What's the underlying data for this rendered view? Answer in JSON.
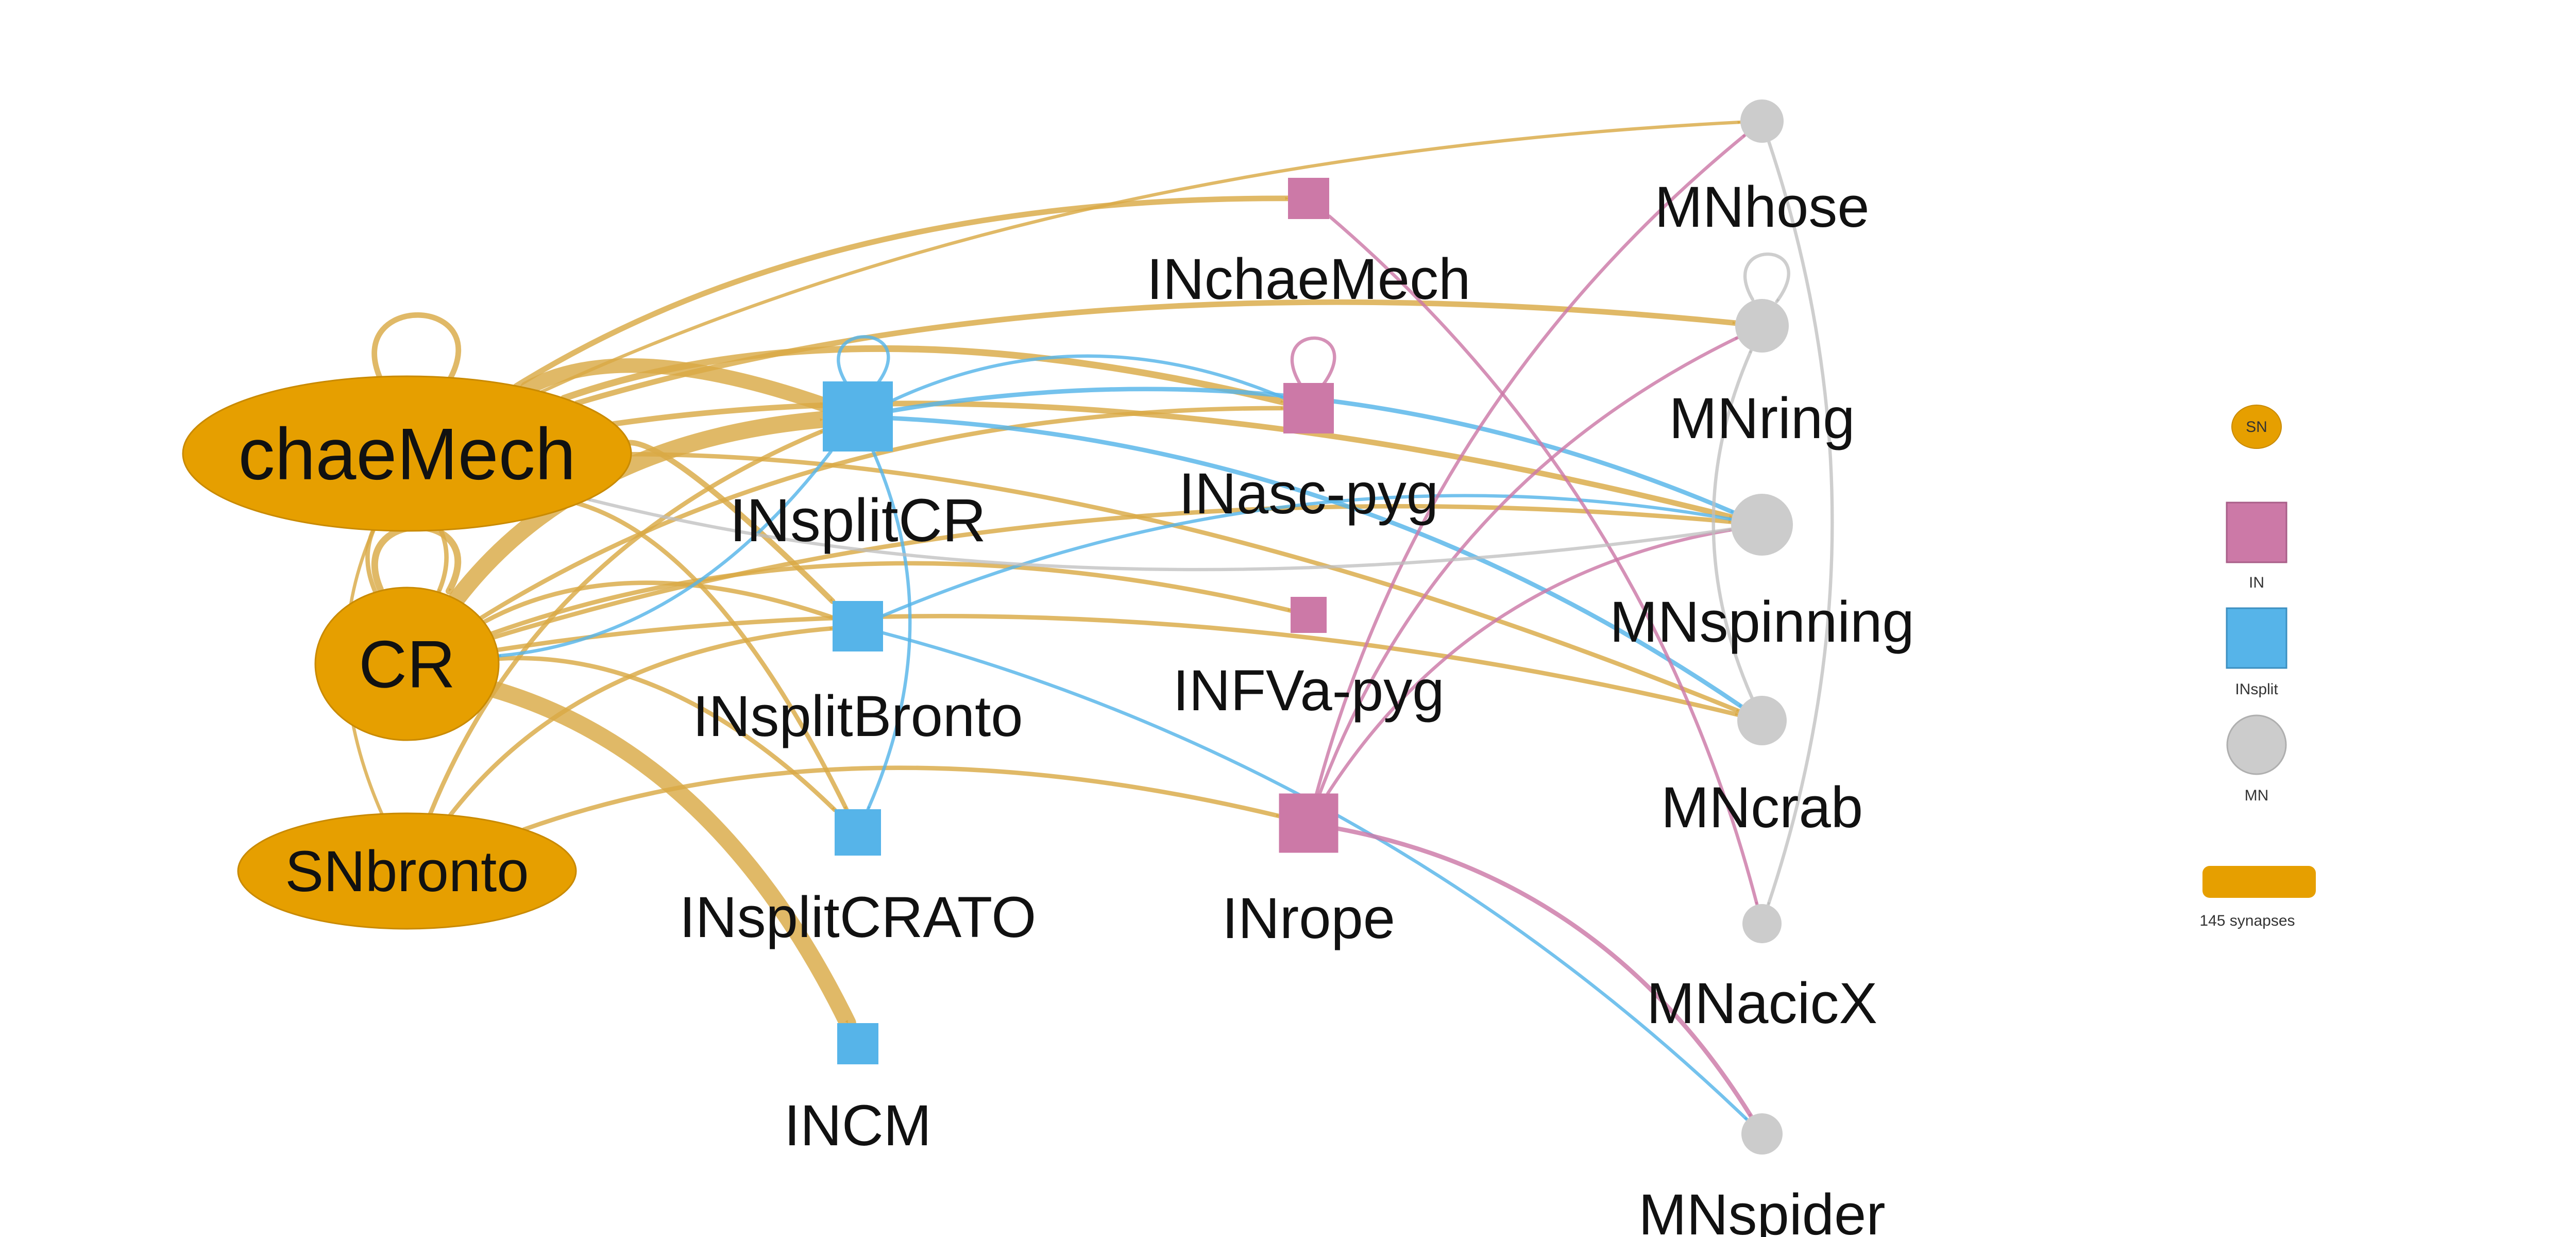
{
  "colors": {
    "SN": "#E69F00",
    "IN": "#CC79A7",
    "INsplit": "#56B4E9",
    "MN": "#CCCCCC",
    "edge_SN": "#D9A945",
    "edge_IN": "#CC79A7",
    "edge_INsplit": "#56B4E9",
    "edge_MN": "#BDBDBD"
  },
  "nodes": [
    {
      "id": "chaeMech",
      "label": "chaeMech",
      "type": "SN",
      "shape": "ellipse"
    },
    {
      "id": "CR",
      "label": "CR",
      "type": "SN",
      "shape": "ellipse"
    },
    {
      "id": "SNbronto",
      "label": "SNbronto",
      "type": "SN",
      "shape": "ellipse"
    },
    {
      "id": "INsplitCR",
      "label": "INsplitCR",
      "type": "INsplit",
      "shape": "square"
    },
    {
      "id": "INsplitBronto",
      "label": "INsplitBronto",
      "type": "INsplit",
      "shape": "square"
    },
    {
      "id": "INsplitCRATO",
      "label": "INsplitCRATO",
      "type": "INsplit",
      "shape": "square"
    },
    {
      "id": "INCM",
      "label": "INCM",
      "type": "INsplit",
      "shape": "square"
    },
    {
      "id": "INchaeMech",
      "label": "INchaeMech",
      "type": "IN",
      "shape": "square"
    },
    {
      "id": "INasc-pyg",
      "label": "INasc-pyg",
      "type": "IN",
      "shape": "square"
    },
    {
      "id": "INFVa-pyg",
      "label": "INFVa-pyg",
      "type": "IN",
      "shape": "square"
    },
    {
      "id": "INrope",
      "label": "INrope",
      "type": "IN",
      "shape": "square"
    },
    {
      "id": "MNhose",
      "label": "MNhose",
      "type": "MN",
      "shape": "circle"
    },
    {
      "id": "MNring",
      "label": "MNring",
      "type": "MN",
      "shape": "circle"
    },
    {
      "id": "MNspinning",
      "label": "MNspinning",
      "type": "MN",
      "shape": "circle"
    },
    {
      "id": "MNcrab",
      "label": "MNcrab",
      "type": "MN",
      "shape": "circle"
    },
    {
      "id": "MNacicX",
      "label": "MNacicX",
      "type": "MN",
      "shape": "circle"
    },
    {
      "id": "MNspider",
      "label": "MNspider",
      "type": "MN",
      "shape": "circle"
    }
  ],
  "edges": [
    {
      "source": "chaeMech",
      "target": "MNhose",
      "weight": 2
    },
    {
      "source": "chaeMech",
      "target": "INchaeMech",
      "weight": 4
    },
    {
      "source": "chaeMech",
      "target": "MNring",
      "weight": 4
    },
    {
      "source": "chaeMech",
      "target": "INsplitCR",
      "weight": 12
    },
    {
      "source": "chaeMech",
      "target": "INasc-pyg",
      "weight": 5
    },
    {
      "source": "chaeMech",
      "target": "MNspinning",
      "weight": 4
    },
    {
      "source": "chaeMech",
      "target": "INsplitBronto",
      "weight": 4
    },
    {
      "source": "chaeMech",
      "target": "INsplitCRATO",
      "weight": 3
    },
    {
      "source": "chaeMech",
      "target": "MNcrab",
      "weight": 3
    },
    {
      "source": "chaeMech",
      "target": "CR",
      "weight": 3
    },
    {
      "source": "chaeMech",
      "target": "chaeMech",
      "weight": 4
    },
    {
      "source": "CR",
      "target": "chaeMech",
      "weight": 3
    },
    {
      "source": "CR",
      "target": "CR",
      "weight": 5
    },
    {
      "source": "CR",
      "target": "INsplitCR",
      "weight": 14
    },
    {
      "source": "CR",
      "target": "INsplitBronto",
      "weight": 3
    },
    {
      "source": "CR",
      "target": "INFVa-pyg",
      "weight": 3
    },
    {
      "source": "CR",
      "target": "INasc-pyg",
      "weight": 3
    },
    {
      "source": "CR",
      "target": "MNspinning",
      "weight": 3
    },
    {
      "source": "CR",
      "target": "MNcrab",
      "weight": 3
    },
    {
      "source": "CR",
      "target": "INsplitCRATO",
      "weight": 3
    },
    {
      "source": "CR",
      "target": "INCM",
      "weight": 14
    },
    {
      "source": "SNbronto",
      "target": "chaeMech",
      "weight": 2
    },
    {
      "source": "SNbronto",
      "target": "INsplitCR",
      "weight": 3
    },
    {
      "source": "SNbronto",
      "target": "INsplitBronto",
      "weight": 3
    },
    {
      "source": "SNbronto",
      "target": "INrope",
      "weight": 3
    },
    {
      "source": "INsplitCR",
      "target": "INsplitCR",
      "weight": 2
    },
    {
      "source": "INsplitCR",
      "target": "CR",
      "weight": 2
    },
    {
      "source": "INsplitCR",
      "target": "INsplitCRATO",
      "weight": 2
    },
    {
      "source": "INsplitCR",
      "target": "INasc-pyg",
      "weight": 2
    },
    {
      "source": "INsplitCR",
      "target": "MNspinning",
      "weight": 3
    },
    {
      "source": "INsplitCR",
      "target": "MNcrab",
      "weight": 3
    },
    {
      "source": "INsplitBronto",
      "target": "MNspinning",
      "weight": 2
    },
    {
      "source": "INsplitBronto",
      "target": "MNspider",
      "weight": 2
    },
    {
      "source": "INchaeMech",
      "target": "MNacicX",
      "weight": 2
    },
    {
      "source": "INasc-pyg",
      "target": "INasc-pyg",
      "weight": 2
    },
    {
      "source": "INrope",
      "target": "MNhose",
      "weight": 2
    },
    {
      "source": "INrope",
      "target": "MNring",
      "weight": 2
    },
    {
      "source": "INrope",
      "target": "MNspinning",
      "weight": 2
    },
    {
      "source": "INrope",
      "target": "MNspider",
      "weight": 3
    },
    {
      "source": "MNhose",
      "target": "MNacicX",
      "weight": 2
    },
    {
      "source": "MNring",
      "target": "MNring",
      "weight": 2
    },
    {
      "source": "MNcrab",
      "target": "MNring",
      "weight": 2
    },
    {
      "source": "MNspinning",
      "target": "chaeMech",
      "weight": 2
    }
  ],
  "legend": {
    "items": [
      {
        "label": "SN",
        "label_position": "inside",
        "type": "SN",
        "shape": "ellipse"
      },
      {
        "label": "IN",
        "label_position": "below",
        "type": "IN",
        "shape": "square"
      },
      {
        "label": "INsplit",
        "label_position": "below",
        "type": "INsplit",
        "shape": "square"
      },
      {
        "label": "MN",
        "label_position": "below",
        "type": "MN",
        "shape": "circle"
      }
    ],
    "edge_scale_label": "145 synapses"
  }
}
